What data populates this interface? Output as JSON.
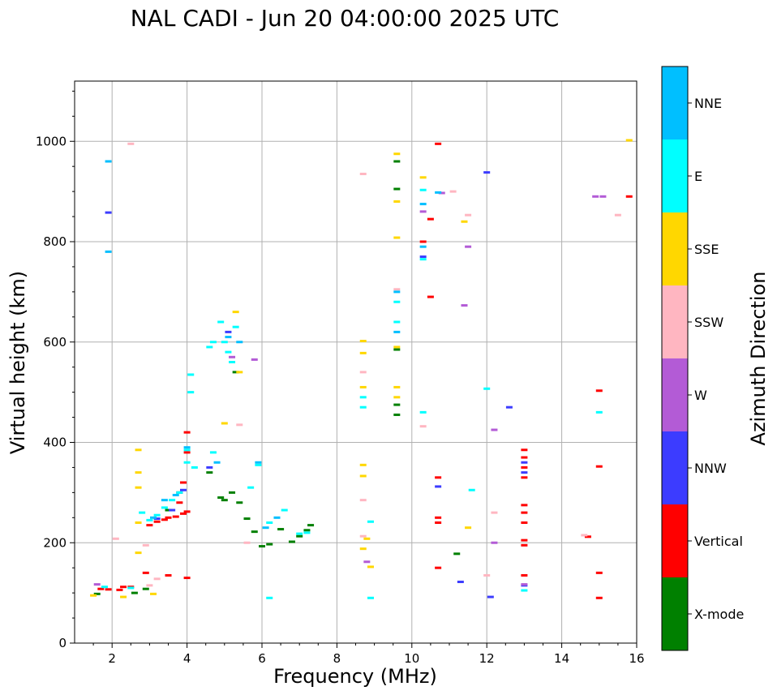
{
  "chart_data": {
    "type": "scatter",
    "title": "NAL CADI - Jun 20 04:00:00 2025 UTC",
    "xlabel": "Frequency (MHz)",
    "ylabel": "Virtual height (km)",
    "xlim": [
      1,
      16
    ],
    "ylim": [
      0,
      1120
    ],
    "xticks": [
      2,
      4,
      6,
      8,
      10,
      12,
      14,
      16
    ],
    "yticks": [
      0,
      200,
      400,
      600,
      800,
      1000
    ],
    "grid": true,
    "colorbar": {
      "label": "Azimuth Direction",
      "position": "right",
      "categories": [
        {
          "name": "X-mode",
          "color": "#008000"
        },
        {
          "name": "Vertical",
          "color": "#ff0000"
        },
        {
          "name": "NNW",
          "color": "#3c3cff"
        },
        {
          "name": "W",
          "color": "#b35bd6"
        },
        {
          "name": "SSW",
          "color": "#ffb6c1"
        },
        {
          "name": "SSE",
          "color": "#ffd700"
        },
        {
          "name": "E",
          "color": "#00ffff"
        },
        {
          "name": "NNE",
          "color": "#00bfff"
        }
      ]
    },
    "series": [
      {
        "name": "X-mode",
        "points": [
          [
            1.6,
            98
          ],
          [
            2.6,
            100
          ],
          [
            2.9,
            108
          ],
          [
            3.5,
            265
          ],
          [
            3.8,
            300
          ],
          [
            4.6,
            340
          ],
          [
            4.9,
            290
          ],
          [
            5.2,
            300
          ],
          [
            5.4,
            280
          ],
          [
            5.6,
            248
          ],
          [
            5.8,
            222
          ],
          [
            6.0,
            193
          ],
          [
            6.2,
            197
          ],
          [
            6.5,
            227
          ],
          [
            6.8,
            202
          ],
          [
            7.0,
            213
          ],
          [
            7.2,
            225
          ],
          [
            7.3,
            235
          ],
          [
            9.6,
            455
          ],
          [
            9.6,
            475
          ],
          [
            9.6,
            585
          ],
          [
            9.6,
            905
          ],
          [
            9.6,
            960
          ],
          [
            11.2,
            178
          ],
          [
            5.0,
            285
          ],
          [
            5.3,
            540
          ]
        ]
      },
      {
        "name": "Vertical",
        "points": [
          [
            1.7,
            108
          ],
          [
            1.9,
            107
          ],
          [
            2.2,
            106
          ],
          [
            2.3,
            112
          ],
          [
            2.5,
            112
          ],
          [
            2.9,
            140
          ],
          [
            3.0,
            235
          ],
          [
            3.2,
            242
          ],
          [
            3.4,
            246
          ],
          [
            3.5,
            250
          ],
          [
            3.7,
            252
          ],
          [
            3.9,
            258
          ],
          [
            4.0,
            262
          ],
          [
            3.8,
            280
          ],
          [
            3.9,
            320
          ],
          [
            4.0,
            380
          ],
          [
            4.0,
            420
          ],
          [
            3.5,
            135
          ],
          [
            4.0,
            130
          ],
          [
            10.7,
            240
          ],
          [
            10.7,
            250
          ],
          [
            10.7,
            330
          ],
          [
            10.7,
            150
          ],
          [
            10.5,
            690
          ],
          [
            10.3,
            800
          ],
          [
            10.7,
            995
          ],
          [
            10.5,
            845
          ],
          [
            13.0,
            240
          ],
          [
            13.0,
            260
          ],
          [
            13.0,
            275
          ],
          [
            13.0,
            330
          ],
          [
            13.0,
            350
          ],
          [
            13.0,
            370
          ],
          [
            13.0,
            385
          ],
          [
            13.0,
            205
          ],
          [
            13.0,
            195
          ],
          [
            13.0,
            135
          ],
          [
            14.7,
            212
          ],
          [
            15.0,
            140
          ],
          [
            15.0,
            90
          ],
          [
            15.0,
            352
          ],
          [
            15.0,
            503
          ],
          [
            15.8,
            890
          ]
        ]
      },
      {
        "name": "NNW",
        "points": [
          [
            1.9,
            858
          ],
          [
            3.2,
            248
          ],
          [
            3.6,
            265
          ],
          [
            3.9,
            305
          ],
          [
            4.6,
            350
          ],
          [
            5.1,
            620
          ],
          [
            10.3,
            770
          ],
          [
            10.7,
            312
          ],
          [
            11.3,
            122
          ],
          [
            12.1,
            92
          ],
          [
            12.6,
            470
          ],
          [
            13.0,
            115
          ],
          [
            13.0,
            340
          ],
          [
            13.0,
            360
          ],
          [
            12.0,
            938
          ]
        ]
      },
      {
        "name": "W",
        "points": [
          [
            1.6,
            117
          ],
          [
            3.8,
            300
          ],
          [
            5.2,
            570
          ],
          [
            5.8,
            565
          ],
          [
            8.8,
            162
          ],
          [
            10.3,
            860
          ],
          [
            10.8,
            897
          ],
          [
            11.5,
            790
          ],
          [
            11.4,
            673
          ],
          [
            12.2,
            425
          ],
          [
            12.2,
            200
          ],
          [
            13.0,
            117
          ],
          [
            14.9,
            890
          ],
          [
            15.1,
            890
          ]
        ]
      },
      {
        "name": "SSW",
        "points": [
          [
            2.1,
            208
          ],
          [
            2.5,
            995
          ],
          [
            2.9,
            195
          ],
          [
            3.0,
            115
          ],
          [
            3.2,
            128
          ],
          [
            5.4,
            435
          ],
          [
            5.6,
            200
          ],
          [
            8.7,
            285
          ],
          [
            8.7,
            213
          ],
          [
            8.7,
            540
          ],
          [
            8.7,
            935
          ],
          [
            9.6,
            705
          ],
          [
            10.3,
            432
          ],
          [
            11.1,
            900
          ],
          [
            11.5,
            853
          ],
          [
            12.0,
            135
          ],
          [
            12.2,
            260
          ],
          [
            14.6,
            215
          ],
          [
            15.5,
            853
          ]
        ]
      },
      {
        "name": "SSE",
        "points": [
          [
            1.5,
            95
          ],
          [
            2.3,
            92
          ],
          [
            2.7,
            180
          ],
          [
            2.7,
            240
          ],
          [
            2.7,
            310
          ],
          [
            2.7,
            340
          ],
          [
            2.7,
            385
          ],
          [
            3.1,
            98
          ],
          [
            5.3,
            660
          ],
          [
            5.4,
            540
          ],
          [
            5.0,
            438
          ],
          [
            8.7,
            602
          ],
          [
            8.7,
            578
          ],
          [
            8.7,
            510
          ],
          [
            8.7,
            355
          ],
          [
            8.7,
            333
          ],
          [
            8.7,
            188
          ],
          [
            8.8,
            208
          ],
          [
            8.9,
            152
          ],
          [
            9.6,
            490
          ],
          [
            9.6,
            510
          ],
          [
            9.6,
            880
          ],
          [
            9.6,
            975
          ],
          [
            9.6,
            808
          ],
          [
            9.6,
            590
          ],
          [
            10.3,
            928
          ],
          [
            11.4,
            840
          ],
          [
            11.5,
            230
          ],
          [
            15.8,
            1002
          ]
        ]
      },
      {
        "name": "E",
        "points": [
          [
            1.8,
            112
          ],
          [
            2.5,
            110
          ],
          [
            2.8,
            260
          ],
          [
            3.0,
            245
          ],
          [
            3.2,
            255
          ],
          [
            3.4,
            270
          ],
          [
            3.6,
            285
          ],
          [
            3.8,
            300
          ],
          [
            4.0,
            385
          ],
          [
            4.0,
            360
          ],
          [
            4.2,
            350
          ],
          [
            4.7,
            380
          ],
          [
            4.9,
            640
          ],
          [
            5.0,
            600
          ],
          [
            5.1,
            580
          ],
          [
            5.2,
            560
          ],
          [
            5.3,
            630
          ],
          [
            4.6,
            590
          ],
          [
            4.7,
            600
          ],
          [
            5.9,
            355
          ],
          [
            5.7,
            310
          ],
          [
            6.2,
            240
          ],
          [
            6.6,
            265
          ],
          [
            7.0,
            218
          ],
          [
            7.2,
            220
          ],
          [
            8.7,
            470
          ],
          [
            8.7,
            490
          ],
          [
            8.9,
            242
          ],
          [
            8.9,
            90
          ],
          [
            9.6,
            640
          ],
          [
            9.6,
            680
          ],
          [
            10.3,
            460
          ],
          [
            10.3,
            765
          ],
          [
            10.3,
            903
          ],
          [
            11.6,
            305
          ],
          [
            12.0,
            507
          ],
          [
            13.0,
            105
          ],
          [
            15.0,
            460
          ],
          [
            6.2,
            90
          ],
          [
            4.1,
            535
          ],
          [
            4.1,
            500
          ]
        ]
      },
      {
        "name": "NNE",
        "points": [
          [
            1.9,
            960
          ],
          [
            1.9,
            780
          ],
          [
            3.1,
            250
          ],
          [
            3.4,
            285
          ],
          [
            3.7,
            295
          ],
          [
            4.0,
            390
          ],
          [
            4.8,
            360
          ],
          [
            5.1,
            610
          ],
          [
            5.4,
            600
          ],
          [
            5.9,
            360
          ],
          [
            6.1,
            230
          ],
          [
            6.4,
            250
          ],
          [
            9.6,
            620
          ],
          [
            9.6,
            700
          ],
          [
            10.3,
            875
          ],
          [
            10.7,
            898
          ],
          [
            10.3,
            790
          ]
        ]
      }
    ]
  }
}
